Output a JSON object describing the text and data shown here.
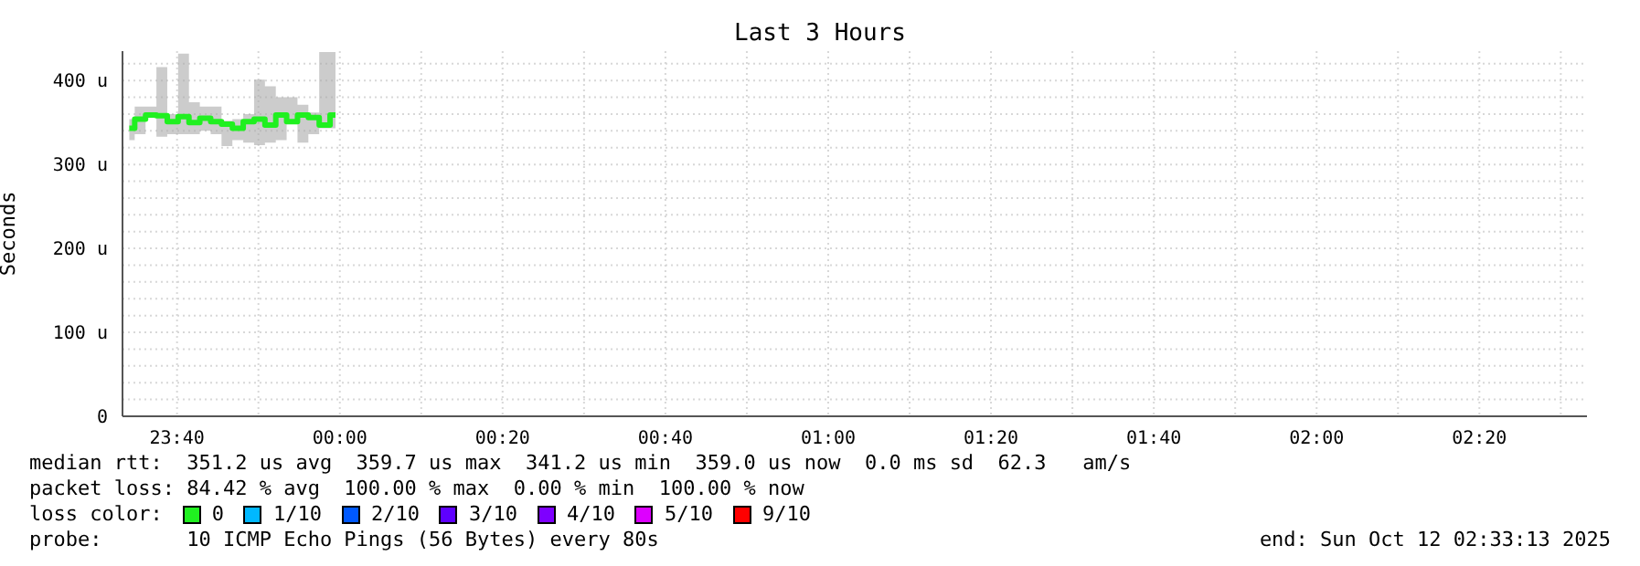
{
  "chart_data": {
    "type": "step",
    "title": "Last 3 Hours",
    "ylabel": "Seconds",
    "legend_title": "loss color:",
    "legend": "bottom left",
    "grid": true,
    "x": [
      "2025-10-11T23:34:08",
      "2025-10-11T23:35:28",
      "2025-10-11T23:36:48",
      "2025-10-11T23:38:08",
      "2025-10-11T23:39:28",
      "2025-10-11T23:40:48",
      "2025-10-11T23:42:08",
      "2025-10-11T23:43:28",
      "2025-10-11T23:44:48",
      "2025-10-11T23:46:08",
      "2025-10-11T23:47:28",
      "2025-10-11T23:48:48",
      "2025-10-11T23:50:08",
      "2025-10-11T23:51:28",
      "2025-10-11T23:52:48",
      "2025-10-11T23:54:08",
      "2025-10-11T23:55:28",
      "2025-10-11T23:56:48",
      "2025-10-11T23:58:08",
      "2025-10-11T23:59:28"
    ],
    "xlim": [
      "2025-10-11T23:33:18",
      "2025-10-12T02:33:13"
    ],
    "xticks": [
      {
        "value": "2025-10-11T23:40",
        "label": "23:40"
      },
      {
        "value": "2025-10-11T23:50",
        "label": null
      },
      {
        "value": "2025-10-12T00:00",
        "label": "00:00"
      },
      {
        "value": "2025-10-12T00:10",
        "label": null
      },
      {
        "value": "2025-10-12T00:20",
        "label": "00:20"
      },
      {
        "value": "2025-10-12T00:30",
        "label": null
      },
      {
        "value": "2025-10-12T00:40",
        "label": "00:40"
      },
      {
        "value": "2025-10-12T00:50",
        "label": null
      },
      {
        "value": "2025-10-12T01:00",
        "label": "01:00"
      },
      {
        "value": "2025-10-12T01:10",
        "label": null
      },
      {
        "value": "2025-10-12T01:20",
        "label": "01:20"
      },
      {
        "value": "2025-10-12T01:30",
        "label": null
      },
      {
        "value": "2025-10-12T01:40",
        "label": "01:40"
      },
      {
        "value": "2025-10-12T01:50",
        "label": null
      },
      {
        "value": "2025-10-12T02:00",
        "label": "02:00"
      },
      {
        "value": "2025-10-12T02:10",
        "label": null
      },
      {
        "value": "2025-10-12T02:20",
        "label": "02:20"
      },
      {
        "value": "2025-10-12T02:30",
        "label": null
      }
    ],
    "ylim": [
      0,
      435
    ],
    "yticks": [
      0,
      {
        "value": 20,
        "label": null
      },
      {
        "value": 40,
        "label": null
      },
      {
        "value": 60,
        "label": null
      },
      {
        "value": 80,
        "label": null
      },
      {
        "value": 100,
        "label": "100 u"
      },
      {
        "value": 120,
        "label": null
      },
      {
        "value": 140,
        "label": null
      },
      {
        "value": 160,
        "label": null
      },
      {
        "value": 180,
        "label": null
      },
      {
        "value": 200,
        "label": "200 u"
      },
      {
        "value": 220,
        "label": null
      },
      {
        "value": 240,
        "label": null
      },
      {
        "value": 260,
        "label": null
      },
      {
        "value": 280,
        "label": null
      },
      {
        "value": 300,
        "label": "300 u"
      },
      {
        "value": 320,
        "label": null
      },
      {
        "value": 340,
        "label": null
      },
      {
        "value": 360,
        "label": null
      },
      {
        "value": 380,
        "label": null
      },
      {
        "value": 400,
        "label": "400 u"
      },
      {
        "value": 420,
        "label": null
      }
    ],
    "series": [
      {
        "name": "0",
        "color": "#20f020",
        "values": [
          343,
          354,
          359,
          358,
          351,
          357,
          350,
          355,
          351,
          348,
          343,
          351,
          354,
          347,
          359,
          351,
          359,
          356,
          347,
          359
        ],
        "lower": [
          329,
          336,
          356,
          333,
          336,
          336,
          336,
          340,
          336,
          322,
          329,
          326,
          323,
          326,
          329,
          348,
          326,
          336,
          343,
          343
        ],
        "upper": [
          354,
          369,
          369,
          416,
          360,
          432,
          374,
          369,
          369,
          352,
          354,
          360,
          401,
          393,
          380,
          380,
          371,
          362,
          434,
          434
        ]
      },
      {
        "name": "1/10",
        "color": "#00b8ff",
        "values": [
          null,
          null,
          null,
          null,
          null,
          null,
          null,
          null,
          null,
          null,
          null,
          null,
          null,
          null,
          null,
          null,
          null,
          null,
          null,
          null
        ]
      },
      {
        "name": "2/10",
        "color": "#0059ff",
        "values": [
          null,
          null,
          null,
          null,
          null,
          null,
          null,
          null,
          null,
          null,
          null,
          null,
          null,
          null,
          null,
          null,
          null,
          null,
          null,
          null
        ]
      },
      {
        "name": "3/10",
        "color": "#5e00ff",
        "values": [
          null,
          null,
          null,
          null,
          null,
          null,
          null,
          null,
          null,
          null,
          null,
          null,
          null,
          null,
          null,
          null,
          null,
          null,
          null,
          null
        ]
      },
      {
        "name": "4/10",
        "color": "#7e00ff",
        "values": [
          null,
          null,
          null,
          null,
          null,
          null,
          null,
          null,
          null,
          null,
          null,
          null,
          null,
          null,
          null,
          null,
          null,
          null,
          null,
          null
        ]
      },
      {
        "name": "5/10",
        "color": "#dd00ff",
        "values": [
          null,
          null,
          null,
          null,
          null,
          null,
          null,
          null,
          null,
          null,
          null,
          null,
          null,
          null,
          null,
          null,
          null,
          null,
          null,
          null
        ]
      },
      {
        "name": "9/10",
        "color": "#ff0000",
        "values": [
          null,
          null,
          null,
          null,
          null,
          null,
          null,
          null,
          null,
          null,
          null,
          null,
          null,
          null,
          null,
          null,
          null,
          null,
          null,
          null
        ]
      }
    ],
    "annotations": [
      "median rtt:  351.2 us avg  359.7 us max  341.2 us min  359.0 us now  0.0 ms sd  62.3   am/s",
      "packet loss: 84.42 % avg  100.00 % max  0.00 % min  100.00 % now",
      "probe:       10 ICMP Echo Pings (56 Bytes) every 80s",
      "end: Sun Oct 12 02:33:13 2025"
    ]
  }
}
